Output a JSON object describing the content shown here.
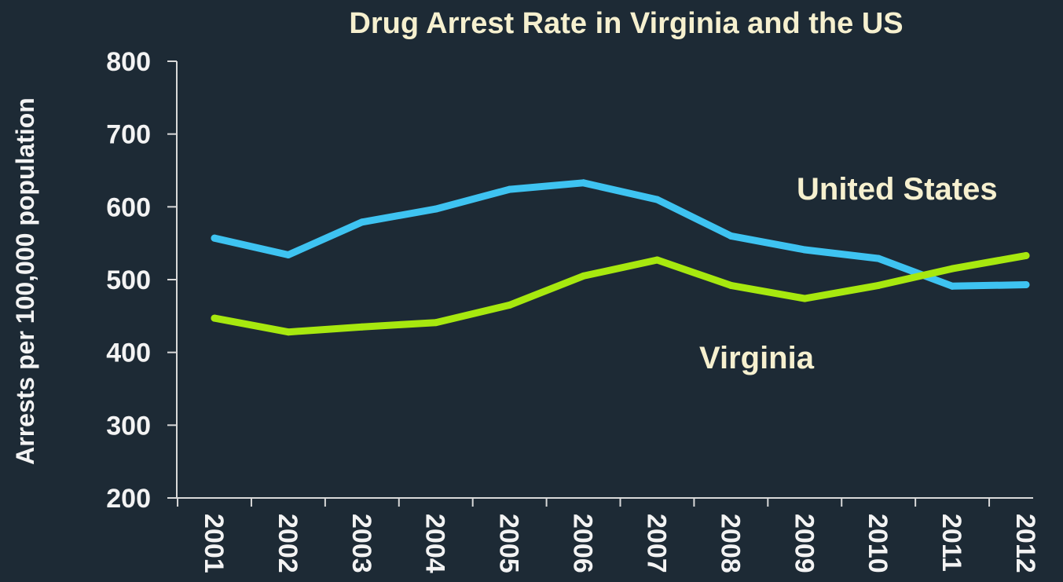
{
  "chart_data": {
    "type": "line",
    "title": "Drug Arrest Rate in Virginia and the US",
    "xlabel": "",
    "ylabel": "Arrests per 100,000 population",
    "x": [
      "2001",
      "2002",
      "2003",
      "2004",
      "2005",
      "2006",
      "2007",
      "2008",
      "2009",
      "2010",
      "2011",
      "2012"
    ],
    "ylim": [
      200,
      800
    ],
    "yticks": [
      "200",
      "300",
      "400",
      "500",
      "600",
      "700",
      "800"
    ],
    "grid": false,
    "series": [
      {
        "name": "United States",
        "color": "#3ec3f1",
        "values": [
          557,
          534,
          579,
          597,
          624,
          633,
          610,
          560,
          541,
          529,
          491,
          493
        ]
      },
      {
        "name": "Virginia",
        "color": "#a7e80f",
        "values": [
          447,
          428,
          435,
          441,
          465,
          505,
          527,
          492,
          474,
          492,
          515,
          533
        ]
      }
    ]
  }
}
